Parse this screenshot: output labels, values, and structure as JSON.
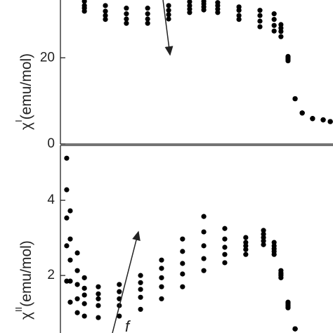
{
  "chart_data": [
    {
      "type": "scatter",
      "ylabel_symbol": "χ",
      "ylabel_superscript": "I",
      "ylabel_unit": "(emu/mol)",
      "xlim": [
        0,
        100
      ],
      "ylim": [
        0,
        33.4
      ],
      "yticks": [
        0,
        20
      ],
      "series": [
        {
          "color": "#000000",
          "x": [
            8.8,
            16.5,
            24.2,
            32.0,
            39.7,
            47.4,
            52.6,
            57.7,
            65.5,
            73.2,
            78.4,
            80.9,
            83.5,
            86.1,
            88.7,
            92.5,
            96.4,
            99.0
          ],
          "values": [
            33.1,
            32.1,
            31.5,
            31.5,
            32.1,
            33.0,
            33.1,
            32.8,
            31.8,
            31.0,
            30.2,
            27.7,
            20.3,
            10.5,
            7.2,
            5.9,
            5.6,
            5.2
          ]
        },
        {
          "color": "#000000",
          "x": [
            8.8,
            16.5,
            24.2,
            32.0,
            39.7,
            47.4,
            52.6,
            57.7,
            65.5,
            73.2,
            78.4,
            80.9,
            83.5,
            86.1,
            88.7,
            92.5,
            96.4,
            99.0
          ],
          "values": [
            32.1,
            30.8,
            30.2,
            30.2,
            31.0,
            32.1,
            32.5,
            32.1,
            31.0,
            29.8,
            28.9,
            26.9,
            20.0,
            10.5,
            7.2,
            5.9,
            5.6,
            5.2
          ]
        },
        {
          "color": "#000000",
          "x": [
            8.8,
            16.5,
            24.2,
            32.0,
            39.7,
            47.4,
            52.6,
            57.7,
            65.5,
            73.2,
            78.4,
            80.9,
            83.5,
            86.1,
            88.7,
            92.5,
            96.4,
            99.0
          ],
          "values": [
            31.5,
            29.8,
            29.0,
            29.0,
            30.0,
            31.3,
            31.8,
            31.3,
            29.8,
            28.5,
            27.5,
            26.1,
            19.7,
            10.5,
            7.2,
            5.9,
            5.6,
            5.2
          ]
        },
        {
          "color": "#000000",
          "x": [
            8.8,
            16.5,
            24.2,
            32.0,
            39.7,
            47.4,
            52.6,
            57.7,
            65.5,
            73.2,
            78.4,
            80.9,
            83.5,
            86.1,
            88.7,
            92.5,
            96.4,
            99.0
          ],
          "values": [
            30.8,
            28.9,
            28.0,
            28.0,
            29.0,
            30.5,
            31.1,
            30.5,
            28.9,
            27.2,
            26.2,
            24.9,
            19.3,
            10.5,
            7.2,
            5.9,
            5.6,
            5.2
          ]
        }
      ]
    },
    {
      "type": "scatter",
      "ylabel_symbol": "χ",
      "ylabel_superscript": "II",
      "ylabel_unit": "(emu/mol)",
      "xlim": [
        0,
        100
      ],
      "ylim": [
        0.47,
        5.46
      ],
      "yticks": [
        2,
        4
      ],
      "annotation": "f",
      "series": [
        {
          "color": "#000000",
          "x": [
            2.3,
            3.6,
            6.2,
            8.8,
            13.9,
            21.6,
            29.4,
            37.1,
            44.8,
            52.6,
            60.3,
            68.0,
            74.5,
            78.4,
            80.9,
            83.5,
            86.1
          ],
          "values": [
            5.12,
            3.72,
            2.6,
            1.94,
            1.7,
            1.76,
            2.0,
            2.41,
            2.97,
            3.57,
            3.25,
            3.01,
            3.2,
            2.88,
            2.13,
            1.29,
            0.58
          ]
        },
        {
          "color": "#000000",
          "x": [
            2.3,
            3.6,
            6.2,
            8.8,
            13.9,
            21.6,
            29.4,
            37.1,
            44.8,
            52.6,
            60.3,
            68.0,
            74.5,
            78.4,
            80.9,
            83.5,
            86.1
          ],
          "values": [
            4.28,
            2.97,
            2.13,
            1.66,
            1.51,
            1.57,
            1.81,
            2.19,
            2.64,
            3.16,
            2.97,
            2.88,
            3.1,
            2.79,
            2.07,
            1.25,
            0.58
          ]
        },
        {
          "color": "#000000",
          "x": [
            2.3,
            3.6,
            6.2,
            8.8,
            13.9,
            21.6,
            29.4,
            37.1,
            44.8,
            52.6,
            60.3,
            68.0,
            74.5,
            78.4,
            80.9,
            83.5,
            86.1
          ],
          "values": [
            3.53,
            2.41,
            1.76,
            1.48,
            1.38,
            1.38,
            1.63,
            1.94,
            2.32,
            2.79,
            2.75,
            2.79,
            3.01,
            2.71,
            2.04,
            1.21,
            0.58
          ]
        },
        {
          "color": "#000000",
          "x": [
            2.3,
            3.6,
            6.2,
            8.8,
            13.9,
            21.6,
            29.4,
            37.1,
            44.8,
            52.6,
            60.3,
            68.0,
            74.5,
            78.4,
            80.9,
            83.5,
            86.1
          ],
          "values": [
            2.79,
            1.85,
            1.38,
            1.25,
            1.2,
            1.2,
            1.42,
            1.7,
            2.04,
            2.45,
            2.56,
            2.69,
            2.92,
            2.64,
            2.0,
            1.18,
            0.58
          ]
        },
        {
          "color": "#000000",
          "x": [
            2.3,
            3.6,
            6.2,
            8.8,
            13.9,
            21.6,
            29.4,
            37.1,
            44.8,
            52.6,
            60.3,
            68.0,
            74.5,
            78.4,
            80.9,
            83.5,
            86.1
          ],
          "values": [
            1.85,
            1.29,
            1.01,
            0.92,
            0.88,
            0.92,
            1.1,
            1.38,
            1.7,
            2.13,
            2.34,
            2.56,
            2.82,
            2.56,
            1.94,
            1.14,
            0.58
          ]
        }
      ]
    }
  ]
}
